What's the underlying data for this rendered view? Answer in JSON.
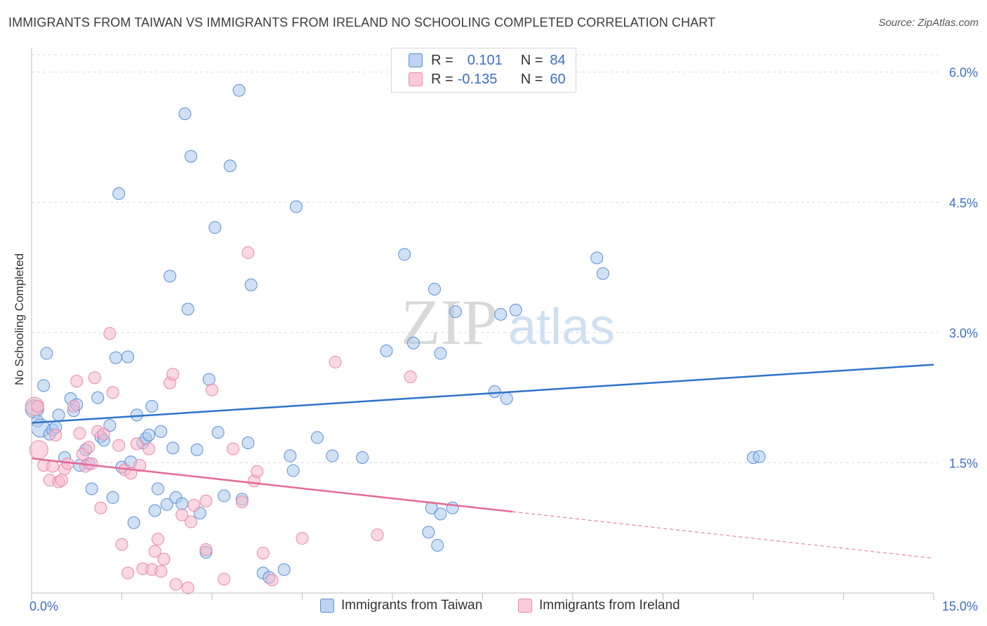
{
  "title": "IMMIGRANTS FROM TAIWAN VS IMMIGRANTS FROM IRELAND NO SCHOOLING COMPLETED CORRELATION CHART",
  "source": "Source: ZipAtlas.com",
  "watermark": {
    "zip": "ZIP",
    "atlas": "atlas"
  },
  "legend": {
    "taiwan": {
      "r_label": "R =",
      "r_value": "0.101",
      "n_label": "N =",
      "n_value": "84"
    },
    "ireland": {
      "r_label": "R =",
      "r_value": "-0.135",
      "n_label": "N =",
      "n_value": "60"
    }
  },
  "colors": {
    "taiwan_fill": "#a9c8ee",
    "taiwan_stroke": "#5b8fd6",
    "taiwan_line": "#2e73c9",
    "ireland_fill": "#f7b8cc",
    "ireland_stroke": "#e889a9",
    "ireland_line": "#e56a96",
    "tick_label": "#3b6fc4",
    "grid": "#dcdcdc"
  },
  "chart_data": {
    "type": "scatter",
    "title": "IMMIGRANTS FROM TAIWAN VS IMMIGRANTS FROM IRELAND NO SCHOOLING COMPLETED CORRELATION CHART",
    "xlabel": "",
    "ylabel": "No Schooling Completed",
    "xlim": [
      0,
      15
    ],
    "ylim": [
      0,
      6.2
    ],
    "x_tick_labels": [
      "0.0%",
      "15.0%"
    ],
    "y_ticks": [
      1.5,
      3.0,
      4.5,
      6.0
    ],
    "y_tick_labels": [
      "1.5%",
      "3.0%",
      "4.5%",
      "6.0%"
    ],
    "grid": true,
    "series": [
      {
        "name": "Immigrants from Taiwan",
        "r": 0.101,
        "n": 84,
        "trend": {
          "x": [
            0,
            15
          ],
          "y": [
            1.96,
            2.63
          ],
          "dashed_from": null
        },
        "points": [
          [
            0.05,
            2.12
          ],
          [
            0.1,
            1.98
          ],
          [
            0.15,
            1.9
          ],
          [
            0.2,
            2.39
          ],
          [
            0.25,
            2.76
          ],
          [
            0.3,
            1.83
          ],
          [
            0.35,
            1.88
          ],
          [
            0.4,
            1.91
          ],
          [
            0.45,
            2.05
          ],
          [
            0.55,
            1.56
          ],
          [
            0.65,
            2.24
          ],
          [
            0.7,
            2.1
          ],
          [
            0.75,
            2.17
          ],
          [
            0.8,
            1.47
          ],
          [
            0.9,
            1.65
          ],
          [
            0.95,
            1.49
          ],
          [
            1.0,
            1.2
          ],
          [
            1.1,
            2.25
          ],
          [
            1.15,
            1.8
          ],
          [
            1.2,
            1.76
          ],
          [
            1.3,
            1.93
          ],
          [
            1.35,
            1.1
          ],
          [
            1.4,
            2.71
          ],
          [
            1.45,
            4.6
          ],
          [
            1.5,
            1.45
          ],
          [
            1.6,
            2.72
          ],
          [
            1.65,
            1.51
          ],
          [
            1.7,
            0.81
          ],
          [
            1.75,
            2.05
          ],
          [
            1.85,
            1.73
          ],
          [
            1.9,
            1.78
          ],
          [
            1.95,
            1.82
          ],
          [
            2.0,
            2.15
          ],
          [
            2.05,
            0.95
          ],
          [
            2.1,
            1.2
          ],
          [
            2.15,
            1.86
          ],
          [
            2.25,
            1.02
          ],
          [
            2.3,
            3.65
          ],
          [
            2.35,
            1.67
          ],
          [
            2.4,
            1.1
          ],
          [
            2.5,
            1.03
          ],
          [
            2.55,
            5.52
          ],
          [
            2.6,
            3.27
          ],
          [
            2.65,
            5.03
          ],
          [
            2.75,
            1.65
          ],
          [
            2.8,
            0.92
          ],
          [
            2.9,
            0.47
          ],
          [
            2.95,
            2.46
          ],
          [
            3.05,
            4.21
          ],
          [
            3.1,
            1.85
          ],
          [
            3.2,
            1.12
          ],
          [
            3.3,
            4.92
          ],
          [
            3.45,
            5.79
          ],
          [
            3.5,
            1.08
          ],
          [
            3.6,
            1.73
          ],
          [
            3.65,
            3.55
          ],
          [
            3.85,
            0.23
          ],
          [
            3.95,
            0.18
          ],
          [
            4.2,
            0.27
          ],
          [
            4.3,
            1.58
          ],
          [
            4.35,
            1.41
          ],
          [
            4.4,
            4.45
          ],
          [
            4.75,
            1.79
          ],
          [
            5.0,
            1.58
          ],
          [
            5.5,
            1.56
          ],
          [
            5.9,
            2.79
          ],
          [
            6.2,
            3.9
          ],
          [
            6.35,
            2.88
          ],
          [
            6.6,
            0.7
          ],
          [
            6.65,
            0.98
          ],
          [
            6.8,
            0.91
          ],
          [
            6.75,
            0.55
          ],
          [
            6.7,
            3.5
          ],
          [
            6.8,
            2.76
          ],
          [
            7.0,
            0.98
          ],
          [
            7.05,
            3.24
          ],
          [
            7.7,
            2.32
          ],
          [
            7.8,
            3.21
          ],
          [
            7.9,
            2.24
          ],
          [
            8.05,
            3.26
          ],
          [
            9.4,
            3.86
          ],
          [
            9.5,
            3.68
          ],
          [
            12.0,
            1.56
          ],
          [
            12.1,
            1.57
          ]
        ]
      },
      {
        "name": "Immigrants from Ireland",
        "r": -0.135,
        "n": 60,
        "trend": {
          "x": [
            0,
            15
          ],
          "y": [
            1.55,
            0.4
          ],
          "dashed_from": 8.0
        },
        "points": [
          [
            0.05,
            2.15
          ],
          [
            0.1,
            2.15
          ],
          [
            0.12,
            1.65
          ],
          [
            0.2,
            1.47
          ],
          [
            0.3,
            1.3
          ],
          [
            0.35,
            1.46
          ],
          [
            0.4,
            1.82
          ],
          [
            0.45,
            1.28
          ],
          [
            0.5,
            1.3
          ],
          [
            0.55,
            1.43
          ],
          [
            0.6,
            1.49
          ],
          [
            0.7,
            2.15
          ],
          [
            0.75,
            2.44
          ],
          [
            0.8,
            1.84
          ],
          [
            0.85,
            1.6
          ],
          [
            0.9,
            1.46
          ],
          [
            0.95,
            1.68
          ],
          [
            1.0,
            1.49
          ],
          [
            1.05,
            2.48
          ],
          [
            1.1,
            1.86
          ],
          [
            1.15,
            0.98
          ],
          [
            1.2,
            1.83
          ],
          [
            1.3,
            2.99
          ],
          [
            1.35,
            2.31
          ],
          [
            1.45,
            1.7
          ],
          [
            1.5,
            0.56
          ],
          [
            1.55,
            1.42
          ],
          [
            1.6,
            0.23
          ],
          [
            1.65,
            1.38
          ],
          [
            1.75,
            1.72
          ],
          [
            1.8,
            1.47
          ],
          [
            1.85,
            0.28
          ],
          [
            1.95,
            1.66
          ],
          [
            2.0,
            0.27
          ],
          [
            2.05,
            0.48
          ],
          [
            2.1,
            0.62
          ],
          [
            2.15,
            0.25
          ],
          [
            2.2,
            0.39
          ],
          [
            2.3,
            2.42
          ],
          [
            2.35,
            2.52
          ],
          [
            2.4,
            0.1
          ],
          [
            2.5,
            0.9
          ],
          [
            2.6,
            0.06
          ],
          [
            2.65,
            0.82
          ],
          [
            2.7,
            1.01
          ],
          [
            2.9,
            1.06
          ],
          [
            3.0,
            2.34
          ],
          [
            3.2,
            0.16
          ],
          [
            3.35,
            1.66
          ],
          [
            3.5,
            1.05
          ],
          [
            3.6,
            3.92
          ],
          [
            3.7,
            1.29
          ],
          [
            3.75,
            1.4
          ],
          [
            3.85,
            0.46
          ],
          [
            4.0,
            0.15
          ],
          [
            4.5,
            0.63
          ],
          [
            5.05,
            2.66
          ],
          [
            5.75,
            0.67
          ],
          [
            6.3,
            2.49
          ],
          [
            2.9,
            0.5
          ]
        ]
      }
    ]
  },
  "bottom_legend": {
    "taiwan": "Immigrants from Taiwan",
    "ireland": "Immigrants from Ireland"
  }
}
